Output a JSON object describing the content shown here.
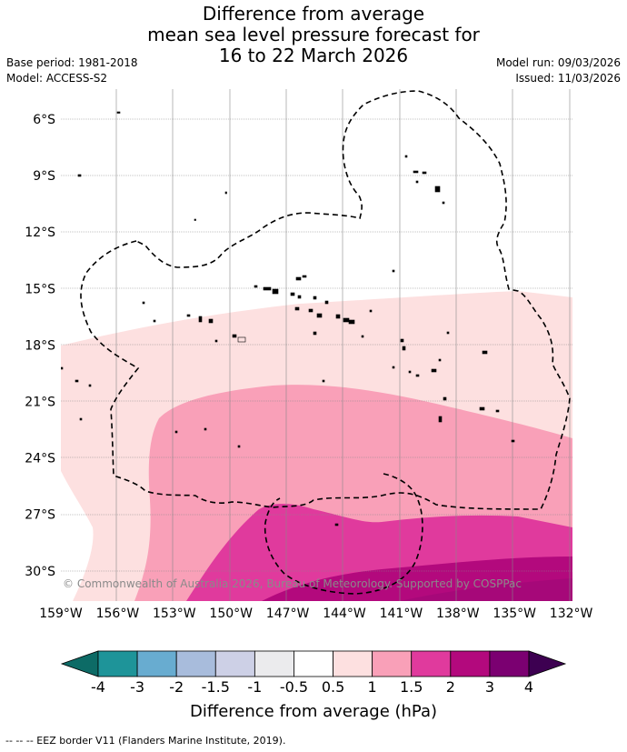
{
  "title": {
    "line1": "Difference from average",
    "line2": "mean sea level pressure forecast for",
    "line3": "16 to 22 March 2026"
  },
  "meta": {
    "base_period": "Base period: 1981-2018",
    "model": "Model: ACCESS-S2",
    "model_run": "Model run: 09/03/2026",
    "issued": "Issued: 11/03/2026"
  },
  "map": {
    "lat_labels": [
      "6°S",
      "9°S",
      "12°S",
      "15°S",
      "18°S",
      "21°S",
      "24°S",
      "27°S",
      "30°S"
    ],
    "lat_values": [
      -6,
      -9,
      -12,
      -15,
      -18,
      -21,
      -24,
      -27,
      -30
    ],
    "lon_labels": [
      "159°W",
      "156°W",
      "153°W",
      "150°W",
      "147°W",
      "144°W",
      "141°W",
      "138°W",
      "135°W",
      "132°W"
    ],
    "lon_values": [
      -159,
      -156,
      -153,
      -150,
      -147,
      -144,
      -141,
      -138,
      -135,
      -132
    ],
    "copyright": "© Commonwealth of Australia 2026, Bureau of Meteorology. Supported by COSPPac"
  },
  "colorbar": {
    "labels": [
      "-4",
      "-3",
      "-2",
      "-1.5",
      "-1",
      "-0.5",
      "0.5",
      "1",
      "1.5",
      "2",
      "3",
      "4"
    ],
    "colors": [
      "#1e9499",
      "#68acd0",
      "#a8bcdc",
      "#cdd0e6",
      "#ebebed",
      "#ffffff",
      "#fde0e0",
      "#f9a0b8",
      "#e03a9d",
      "#b3097d",
      "#7b0071"
    ],
    "under_color": "#0d6b66",
    "over_color": "#3d0051",
    "title": "Difference from average (hPa)"
  },
  "footer": "--  --  -- EEZ border V11 (Flanders Marine Institute, 2019)."
}
